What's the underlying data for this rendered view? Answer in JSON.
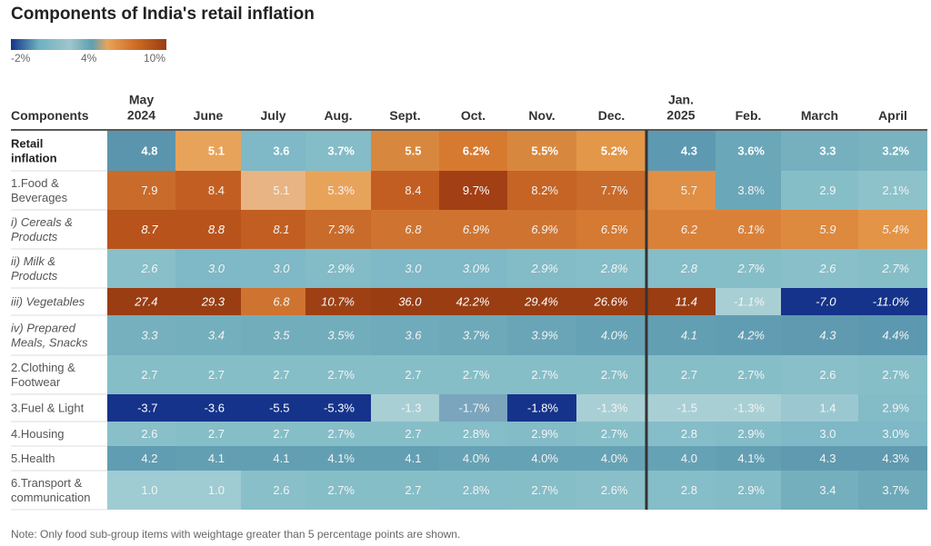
{
  "title": "Components of India's retail inflation",
  "legend": {
    "labels": [
      "-2%",
      "4%",
      "10%"
    ],
    "colors": [
      "#15338a",
      "#6fb1c2",
      "#5ea0b3",
      "#e8a35b",
      "#d06d24",
      "#9a3d12"
    ]
  },
  "note": "Note: Only food sub-group items with weightage greater than 5 percentage points are shown.",
  "chart_data": {
    "type": "heatmap",
    "row_header": "Components",
    "columns": [
      "May 2024",
      "June",
      "July",
      "Aug.",
      "Sept.",
      "Oct.",
      "Nov.",
      "Dec.",
      "Jan. 2025",
      "Feb.",
      "March",
      "April"
    ],
    "rows": [
      {
        "label": "Retail inflation",
        "values": [
          "4.8",
          "5.1",
          "3.6",
          "3.7%",
          "5.5",
          "6.2%",
          "5.5%",
          "5.2%",
          "4.3",
          "3.6%",
          "3.3",
          "3.2%"
        ],
        "colors": [
          "#5b95ad",
          "#e8a35b",
          "#7fb8c6",
          "#84bcc7",
          "#d8883e",
          "#d67a30",
          "#d8883e",
          "#e29749",
          "#5d9ab2",
          "#6aa7b8",
          "#76b0be",
          "#7ab3c0"
        ]
      },
      {
        "label": "1.Food & Beverages",
        "values": [
          "7.9",
          "8.4",
          "5.1",
          "5.3%",
          "8.4",
          "9.7%",
          "8.2%",
          "7.7%",
          "5.7",
          "3.8%",
          "2.9",
          "2.1%"
        ],
        "colors": [
          "#c96b2a",
          "#c35e22",
          "#e8b483",
          "#e8a35b",
          "#c35e22",
          "#a33f14",
          "#c56425",
          "#c96b2a",
          "#e08f44",
          "#6aa7b8",
          "#86bec8",
          "#8dc2cb"
        ]
      },
      {
        "label": "i) Cereals & Products",
        "values": [
          "8.7",
          "8.8",
          "8.1",
          "7.3%",
          "6.8",
          "6.9%",
          "6.9%",
          "6.5%",
          "6.2",
          "6.1%",
          "5.9",
          "5.4%"
        ],
        "colors": [
          "#b9531c",
          "#b9531c",
          "#c35e22",
          "#c96b2a",
          "#cf7430",
          "#cf7430",
          "#cf7430",
          "#d47a33",
          "#da8139",
          "#da8139",
          "#dd893e",
          "#e39446"
        ]
      },
      {
        "label": "ii) Milk & Products",
        "values": [
          "2.6",
          "3.0",
          "3.0",
          "2.9%",
          "3.0",
          "3.0%",
          "2.9%",
          "2.8%",
          "2.8",
          "2.7%",
          "2.6",
          "2.7%"
        ],
        "colors": [
          "#88bfc9",
          "#7fb8c6",
          "#7fb8c6",
          "#83bbc7",
          "#7fb8c6",
          "#7fb8c6",
          "#83bbc7",
          "#85bdc8",
          "#85bdc8",
          "#86bec8",
          "#88bfc9",
          "#86bec8"
        ]
      },
      {
        "label": "iii) Vegetables",
        "values": [
          "27.4",
          "29.3",
          "6.8",
          "10.7%",
          "36.0",
          "42.2%",
          "29.4%",
          "26.6%",
          "11.4",
          "-1.1%",
          "-7.0",
          "-11.0%"
        ],
        "colors": [
          "#9a3d12",
          "#9a3d12",
          "#cf7430",
          "#9e4014",
          "#9a3d12",
          "#9a3d12",
          "#9a3d12",
          "#9a3d12",
          "#9a3d12",
          "#a8cfd4",
          "#15338a",
          "#15338a"
        ]
      },
      {
        "label": "iv) Prepared Meals, Snacks",
        "values": [
          "3.3",
          "3.4",
          "3.5",
          "3.5%",
          "3.6",
          "3.7%",
          "3.9%",
          "4.0%",
          "4.1",
          "4.2%",
          "4.3",
          "4.4%"
        ],
        "colors": [
          "#76b0be",
          "#74afbd",
          "#72adbc",
          "#72adbc",
          "#70abbb",
          "#6ea9b9",
          "#69a5b7",
          "#66a2b5",
          "#639fb3",
          "#619db2",
          "#5f9ab0",
          "#5c98af"
        ]
      },
      {
        "label": "2.Clothing & Footwear",
        "values": [
          "2.7",
          "2.7",
          "2.7",
          "2.7%",
          "2.7",
          "2.7%",
          "2.7%",
          "2.7%",
          "2.7",
          "2.7%",
          "2.6",
          "2.7%"
        ],
        "colors": [
          "#86bec8",
          "#86bec8",
          "#86bec8",
          "#86bec8",
          "#86bec8",
          "#86bec8",
          "#86bec8",
          "#86bec8",
          "#86bec8",
          "#86bec8",
          "#88bfc9",
          "#86bec8"
        ]
      },
      {
        "label": "3.Fuel & Light",
        "values": [
          "-3.7",
          "-3.6",
          "-5.5",
          "-5.3%",
          "-1.3",
          "-1.7%",
          "-1.8%",
          "-1.3%",
          "-1.5",
          "-1.3%",
          "1.4",
          "2.9%"
        ],
        "colors": [
          "#15338a",
          "#15338a",
          "#15338a",
          "#15338a",
          "#a8cfd4",
          "#7aa5bd",
          "#15338a",
          "#a8cfd4",
          "#a8cfd4",
          "#a8cfd4",
          "#9bc8d0",
          "#83bbc7"
        ]
      },
      {
        "label": "4.Housing",
        "values": [
          "2.6",
          "2.7",
          "2.7",
          "2.7%",
          "2.7",
          "2.8%",
          "2.9%",
          "2.7%",
          "2.8",
          "2.9%",
          "3.0",
          "3.0%"
        ],
        "colors": [
          "#88bfc9",
          "#86bec8",
          "#86bec8",
          "#86bec8",
          "#86bec8",
          "#85bdc8",
          "#83bbc7",
          "#86bec8",
          "#85bdc8",
          "#83bbc7",
          "#7fb8c6",
          "#7fb8c6"
        ]
      },
      {
        "label": "5.Health",
        "values": [
          "4.2",
          "4.1",
          "4.1",
          "4.1%",
          "4.1",
          "4.0%",
          "4.0%",
          "4.0%",
          "4.0",
          "4.1%",
          "4.3",
          "4.3%"
        ],
        "colors": [
          "#619db2",
          "#639fb3",
          "#639fb3",
          "#639fb3",
          "#639fb3",
          "#66a2b5",
          "#66a2b5",
          "#66a2b5",
          "#66a2b5",
          "#639fb3",
          "#5f9ab0",
          "#5f9ab0"
        ]
      },
      {
        "label": "6.Transport & communication",
        "values": [
          "1.0",
          "1.0",
          "2.6",
          "2.7%",
          "2.7",
          "2.8%",
          "2.7%",
          "2.6%",
          "2.8",
          "2.9%",
          "3.4",
          "3.7%"
        ],
        "colors": [
          "#9fcbd2",
          "#9fcbd2",
          "#88bfc9",
          "#86bec8",
          "#86bec8",
          "#85bdc8",
          "#86bec8",
          "#88bfc9",
          "#85bdc8",
          "#83bbc7",
          "#74afbd",
          "#6ea9b9"
        ]
      }
    ]
  }
}
